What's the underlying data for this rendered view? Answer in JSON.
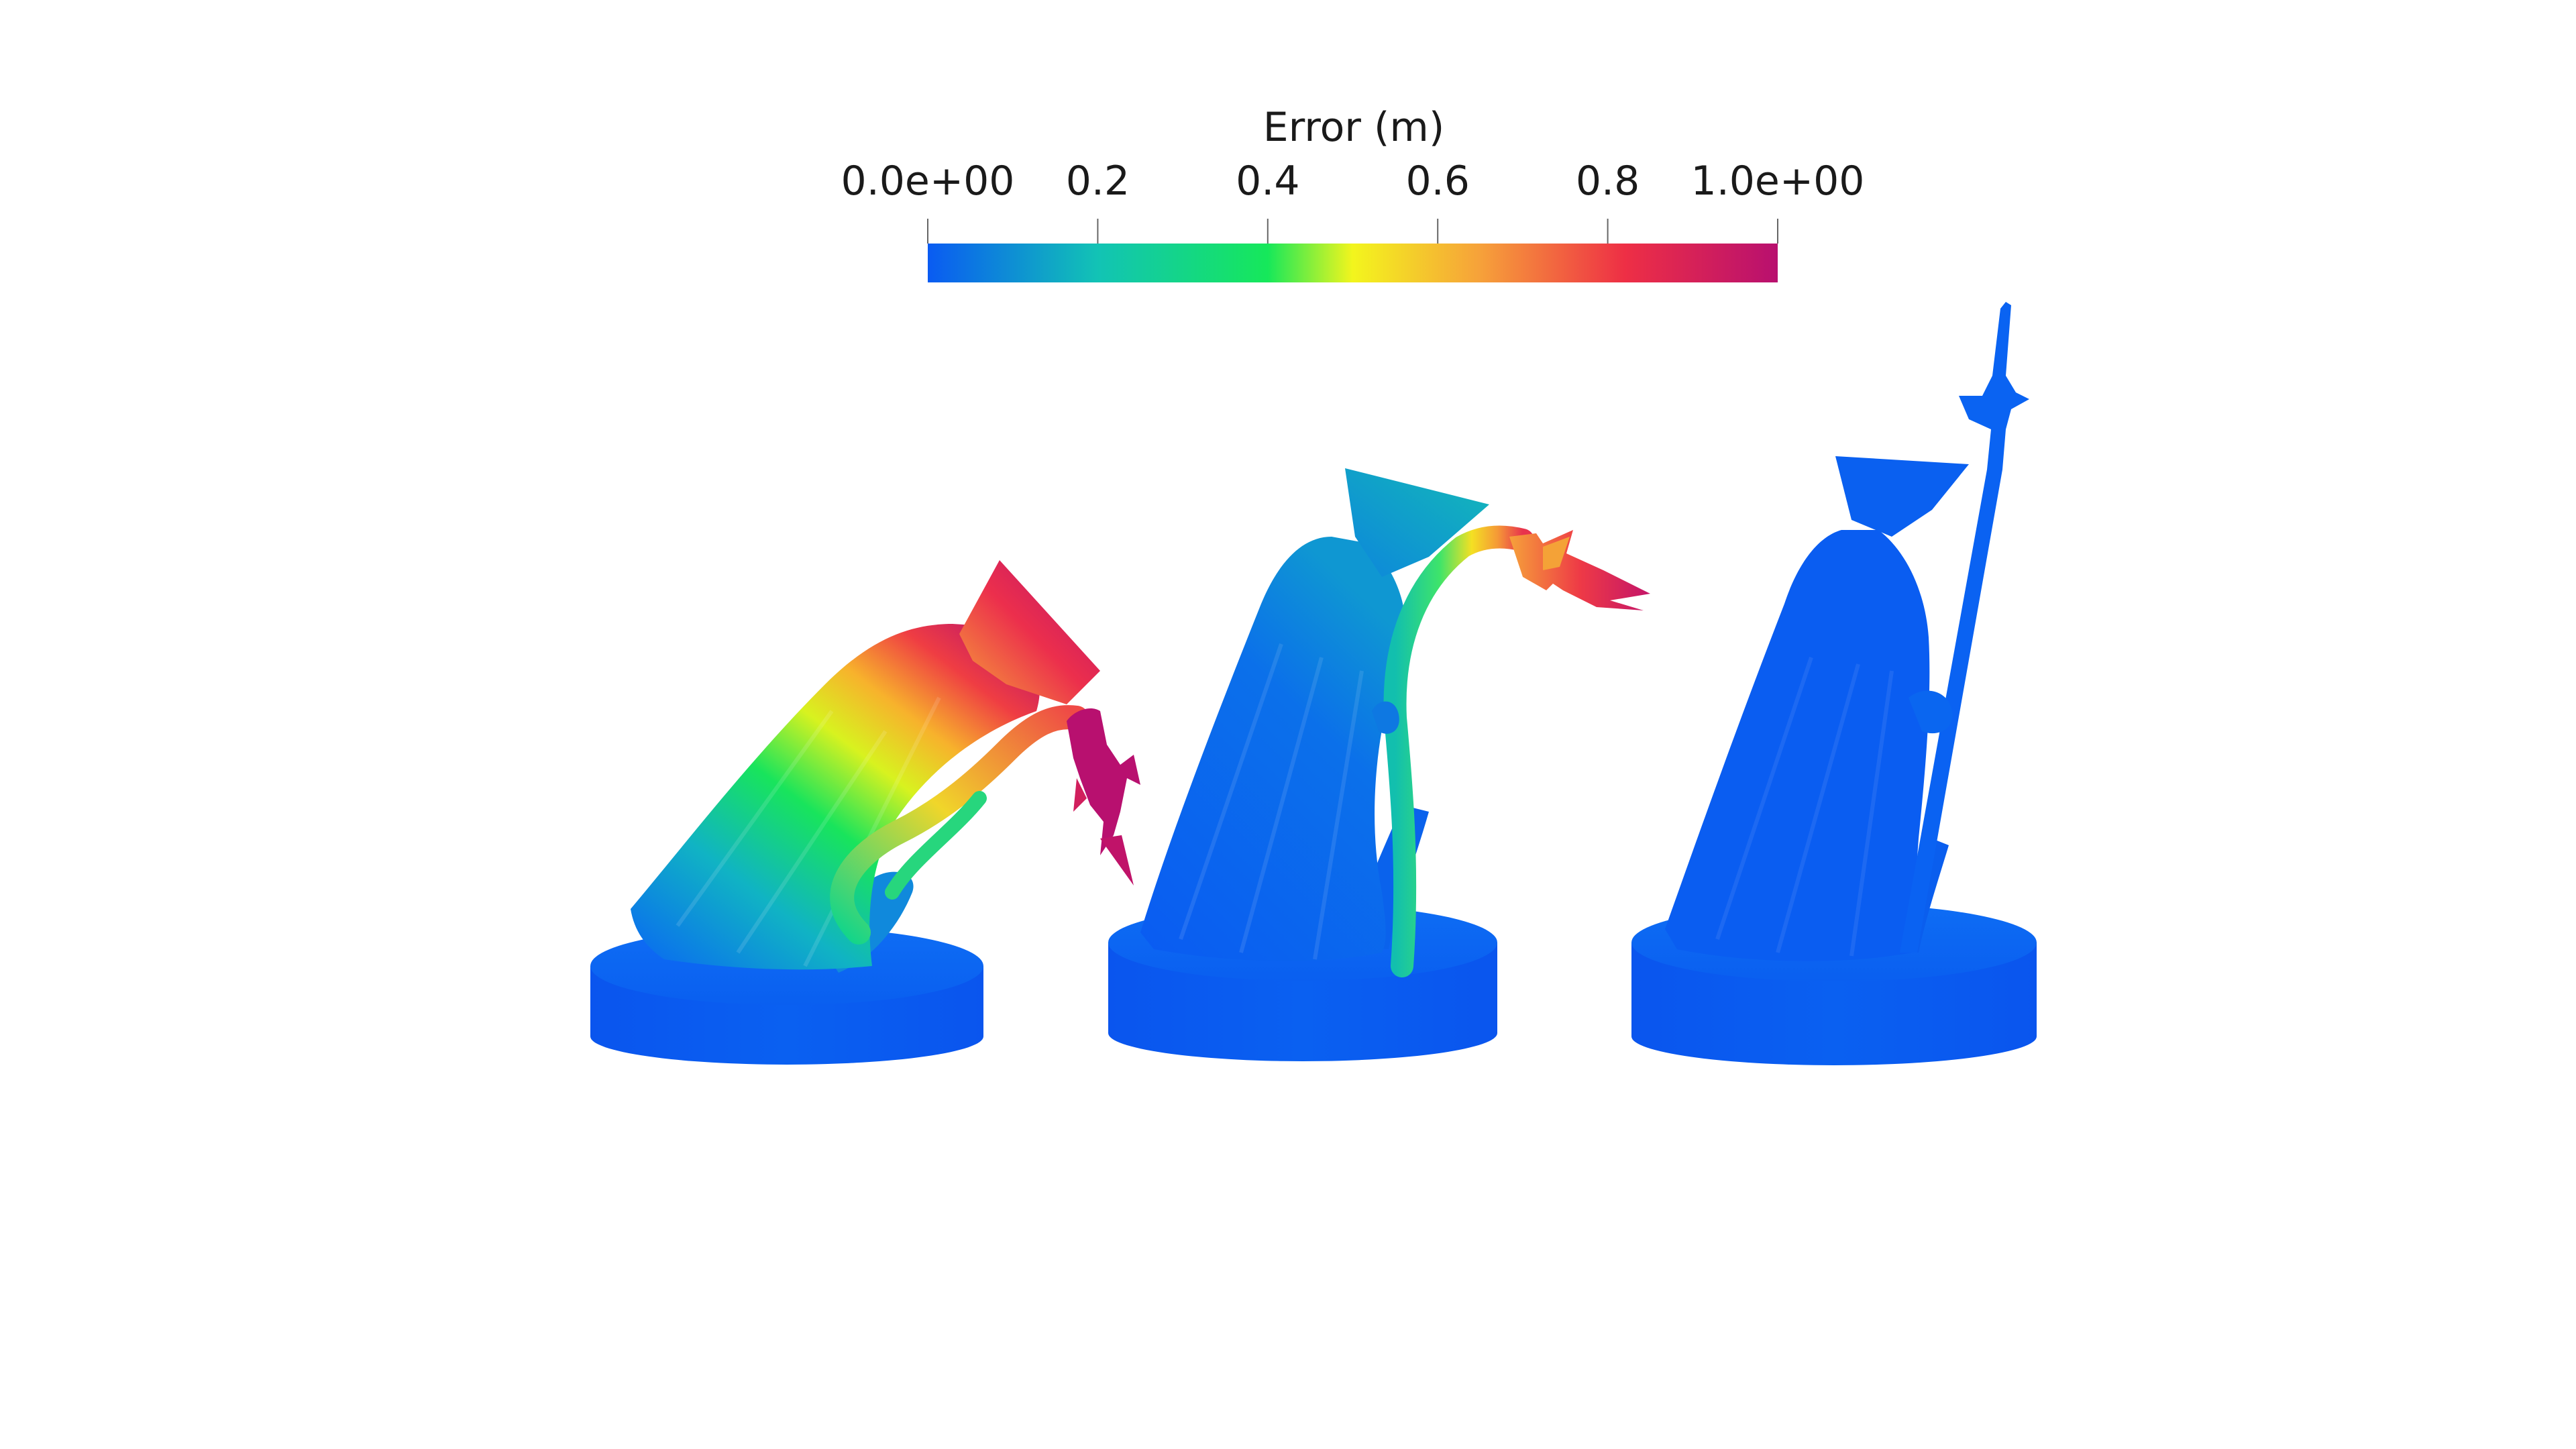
{
  "colorbar": {
    "title": "Error (m)",
    "ticks": [
      "0.0e+00",
      "0.2",
      "0.4",
      "0.6",
      "0.8",
      "1.0e+00"
    ],
    "tick_values": [
      0.0,
      0.2,
      0.4,
      0.6,
      0.8,
      1.0
    ],
    "range": [
      0.0,
      1.0
    ],
    "colormap": [
      "#0a5bf2",
      "#12c3b5",
      "#16e85a",
      "#f3f51d",
      "#f6a13a",
      "#ee2f45",
      "#b8106f"
    ]
  },
  "figures": [
    {
      "pose": "deformed-large",
      "max_error": 1.0
    },
    {
      "pose": "deformed-small",
      "max_error": 0.85
    },
    {
      "pose": "reference",
      "max_error": 0.0
    }
  ]
}
